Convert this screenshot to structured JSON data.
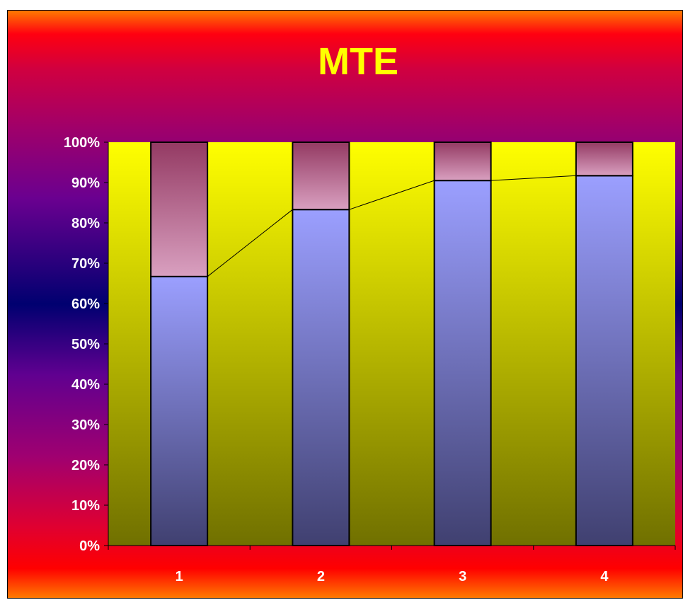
{
  "chart_data": {
    "type": "bar",
    "stacked": true,
    "percent_stacked": true,
    "title": "MTE",
    "categories": [
      "1",
      "2",
      "3",
      "4"
    ],
    "series": [
      {
        "values": [
          66.7,
          83.3,
          90.5,
          91.7
        ]
      },
      {
        "values": [
          33.3,
          16.7,
          9.5,
          8.3
        ]
      }
    ],
    "line_overlay": [
      66.7,
      83.3,
      90.5,
      91.7
    ],
    "ylim": [
      0,
      100
    ],
    "yticks": [
      "0%",
      "10%",
      "20%",
      "30%",
      "40%",
      "50%",
      "60%",
      "70%",
      "80%",
      "90%",
      "100%"
    ],
    "grid": false,
    "legend": "none"
  },
  "colors": {
    "title": "#ffff00",
    "tick_text": "#ffffff",
    "plot_top": "#ffff00",
    "plot_bottom": "#707000",
    "lower_bar_top": "#9b9fff",
    "lower_bar_bottom": "#404070",
    "upper_bar_top": "#943a63",
    "upper_bar_bottom": "#d9a0c0"
  }
}
